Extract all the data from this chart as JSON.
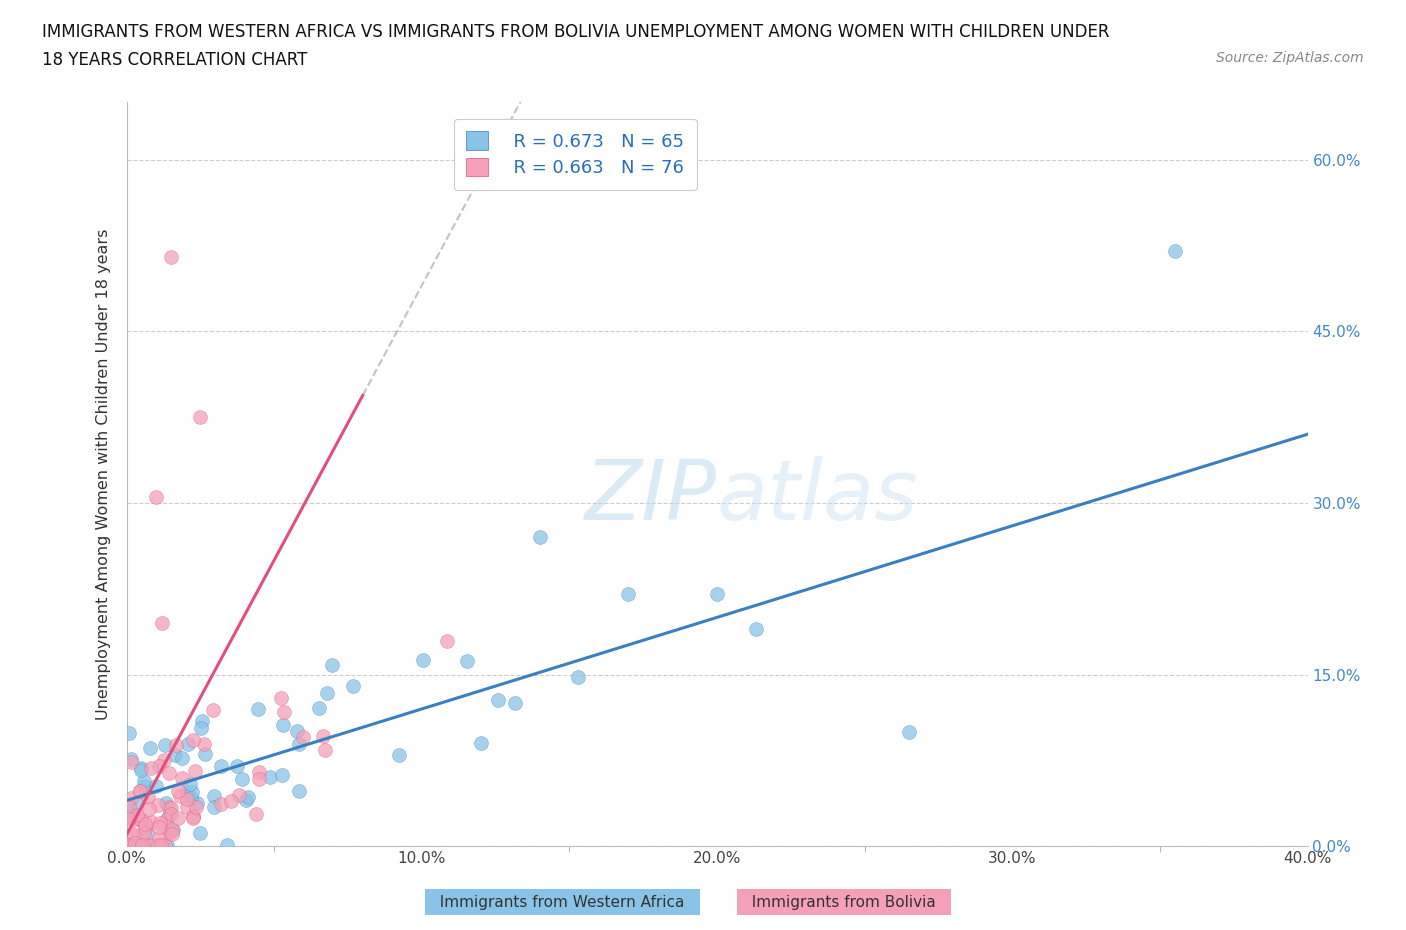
{
  "title_line1": "IMMIGRANTS FROM WESTERN AFRICA VS IMMIGRANTS FROM BOLIVIA UNEMPLOYMENT AMONG WOMEN WITH CHILDREN UNDER",
  "title_line2": "18 YEARS CORRELATION CHART",
  "source": "Source: ZipAtlas.com",
  "ylabel": "Unemployment Among Women with Children Under 18 years",
  "xlim": [
    0.0,
    0.4
  ],
  "ylim": [
    0.0,
    0.65
  ],
  "x_tick_vals": [
    0.0,
    0.1,
    0.2,
    0.3,
    0.4
  ],
  "x_tick_labels": [
    "0.0%",
    "10.0%",
    "20.0%",
    "30.0%",
    "40.0%"
  ],
  "y_tick_vals": [
    0.0,
    0.15,
    0.3,
    0.45,
    0.6
  ],
  "y_tick_labels": [
    "0.0%",
    "15.0%",
    "30.0%",
    "45.0%",
    "60.0%"
  ],
  "series1_label": "Immigrants from Western Africa",
  "series1_color": "#89c4e8",
  "series1_line_color": "#3a7fc1",
  "series1_R": "0.673",
  "series1_N": "65",
  "series2_label": "Immigrants from Bolivia",
  "series2_color": "#f4a0b8",
  "series2_line_color": "#e0507a",
  "series2_R": "0.663",
  "series2_N": "76",
  "watermark_color": "#cce5f5",
  "background_color": "#ffffff",
  "grid_color": "#cccccc",
  "right_tick_color": "#4488cc",
  "legend_text_color": "#2a6ebd"
}
